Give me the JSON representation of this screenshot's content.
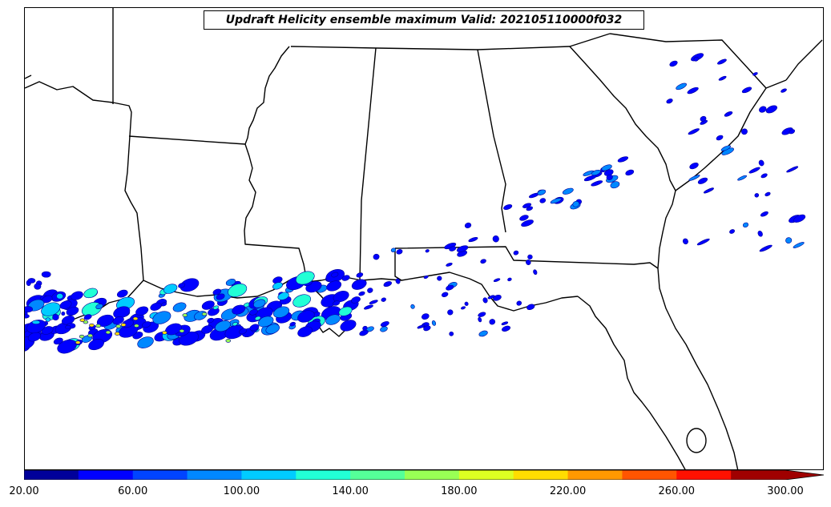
{
  "title": "Updraft Helicity ensemble maximum Valid: 202105110000f032",
  "colorbar": {
    "tick_labels": [
      "20.00",
      "60.00",
      "100.00",
      "140.00",
      "180.00",
      "220.00",
      "260.00",
      "300.00"
    ],
    "colors": [
      "#00009a",
      "#0000ff",
      "#0044ff",
      "#0088ff",
      "#00ccff",
      "#22ffd6",
      "#55ff99",
      "#99ff55",
      "#ddff22",
      "#ffdd00",
      "#ff9900",
      "#ff5500",
      "#ff1100",
      "#a00000"
    ],
    "extend": "max"
  },
  "map": {
    "region": "Southeastern United States and northern Gulf of Mexico",
    "field": "Updraft Helicity",
    "color_scale": {
      "min": 20,
      "max": 300,
      "step": 20
    }
  }
}
